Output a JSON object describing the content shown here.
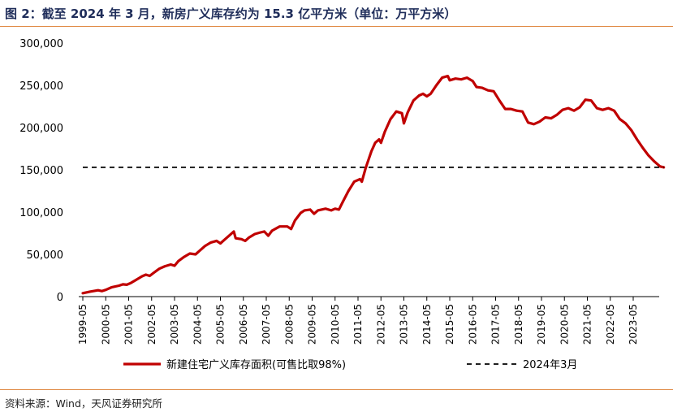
{
  "figure": {
    "title": "图 2：截至 2024 年 3 月，新房广义库存约为 15.3 亿平方米（单位：万平方米）",
    "source": "资料来源：Wind，天风证券研究所"
  },
  "chart_data": {
    "type": "line",
    "title": "",
    "xlabel": "",
    "ylabel": "",
    "ylim": [
      0,
      300000
    ],
    "yticks": [
      "0",
      "50,000",
      "100,000",
      "150,000",
      "200,000",
      "250,000",
      "300,000"
    ],
    "xticks": [
      "1999-05",
      "2000-05",
      "2001-05",
      "2002-05",
      "2003-05",
      "2004-05",
      "2005-05",
      "2006-05",
      "2007-05",
      "2008-05",
      "2009-05",
      "2010-05",
      "2011-05",
      "2012-05",
      "2013-05",
      "2014-05",
      "2015-05",
      "2016-05",
      "2017-05",
      "2018-05",
      "2019-05",
      "2020-05",
      "2021-05",
      "2022-05",
      "2023-05"
    ],
    "grid": false,
    "legend_position": "bottom",
    "series": [
      {
        "name": "新建住宅广义库存面积(可售比取98%)",
        "color": "#c00000",
        "style": "solid",
        "points": [
          [
            "1999-05",
            4000
          ],
          [
            "1999-09",
            6000
          ],
          [
            "2000-01",
            7500
          ],
          [
            "2000-03",
            6500
          ],
          [
            "2000-05",
            8000
          ],
          [
            "2000-08",
            11000
          ],
          [
            "2000-12",
            13000
          ],
          [
            "2001-02",
            14500
          ],
          [
            "2001-04",
            14000
          ],
          [
            "2001-06",
            16000
          ],
          [
            "2001-09",
            20000
          ],
          [
            "2001-12",
            24000
          ],
          [
            "2002-02",
            26000
          ],
          [
            "2002-04",
            24500
          ],
          [
            "2002-06",
            28000
          ],
          [
            "2002-09",
            33000
          ],
          [
            "2002-12",
            36000
          ],
          [
            "2003-03",
            38000
          ],
          [
            "2003-05",
            36500
          ],
          [
            "2003-07",
            42000
          ],
          [
            "2003-10",
            47000
          ],
          [
            "2004-01",
            51000
          ],
          [
            "2004-04",
            50000
          ],
          [
            "2004-06",
            54000
          ],
          [
            "2004-09",
            60000
          ],
          [
            "2004-12",
            64000
          ],
          [
            "2005-03",
            66000
          ],
          [
            "2005-05",
            63000
          ],
          [
            "2005-07",
            67000
          ],
          [
            "2005-10",
            73000
          ],
          [
            "2005-12",
            77000
          ],
          [
            "2006-01",
            69000
          ],
          [
            "2006-04",
            68000
          ],
          [
            "2006-06",
            66000
          ],
          [
            "2006-08",
            70000
          ],
          [
            "2006-11",
            74000
          ],
          [
            "2007-02",
            76000
          ],
          [
            "2007-04",
            77000
          ],
          [
            "2007-06",
            72000
          ],
          [
            "2007-08",
            78000
          ],
          [
            "2007-12",
            83000
          ],
          [
            "2008-04",
            83000
          ],
          [
            "2008-06",
            80000
          ],
          [
            "2008-08",
            90000
          ],
          [
            "2008-11",
            99000
          ],
          [
            "2009-01",
            102000
          ],
          [
            "2009-04",
            103000
          ],
          [
            "2009-06",
            98000
          ],
          [
            "2009-08",
            102000
          ],
          [
            "2009-12",
            104000
          ],
          [
            "2010-03",
            102000
          ],
          [
            "2010-05",
            104000
          ],
          [
            "2010-07",
            103000
          ],
          [
            "2010-09",
            112000
          ],
          [
            "2010-12",
            125000
          ],
          [
            "2011-03",
            136000
          ],
          [
            "2011-06",
            139000
          ],
          [
            "2011-07",
            136000
          ],
          [
            "2011-09",
            152000
          ],
          [
            "2011-12",
            172000
          ],
          [
            "2012-02",
            182000
          ],
          [
            "2012-04",
            186000
          ],
          [
            "2012-05",
            182000
          ],
          [
            "2012-07",
            195000
          ],
          [
            "2012-10",
            210000
          ],
          [
            "2013-01",
            219000
          ],
          [
            "2013-04",
            217000
          ],
          [
            "2013-05",
            205000
          ],
          [
            "2013-07",
            218000
          ],
          [
            "2013-10",
            232000
          ],
          [
            "2014-01",
            238000
          ],
          [
            "2014-03",
            240000
          ],
          [
            "2014-05",
            237000
          ],
          [
            "2014-07",
            240000
          ],
          [
            "2014-10",
            250000
          ],
          [
            "2015-01",
            259000
          ],
          [
            "2015-04",
            261000
          ],
          [
            "2015-05",
            256000
          ],
          [
            "2015-08",
            258000
          ],
          [
            "2015-11",
            257000
          ],
          [
            "2016-02",
            259000
          ],
          [
            "2016-05",
            255000
          ],
          [
            "2016-07",
            248000
          ],
          [
            "2016-10",
            247000
          ],
          [
            "2017-01",
            244000
          ],
          [
            "2017-04",
            243000
          ],
          [
            "2017-07",
            232000
          ],
          [
            "2017-10",
            222000
          ],
          [
            "2018-01",
            222000
          ],
          [
            "2018-04",
            220000
          ],
          [
            "2018-07",
            219000
          ],
          [
            "2018-10",
            206000
          ],
          [
            "2019-01",
            204000
          ],
          [
            "2019-04",
            207000
          ],
          [
            "2019-07",
            212000
          ],
          [
            "2019-10",
            211000
          ],
          [
            "2020-01",
            215000
          ],
          [
            "2020-04",
            221000
          ],
          [
            "2020-07",
            223000
          ],
          [
            "2020-10",
            220000
          ],
          [
            "2021-01",
            224000
          ],
          [
            "2021-04",
            233000
          ],
          [
            "2021-07",
            232000
          ],
          [
            "2021-10",
            223000
          ],
          [
            "2022-01",
            221000
          ],
          [
            "2022-04",
            223000
          ],
          [
            "2022-07",
            220000
          ],
          [
            "2022-10",
            210000
          ],
          [
            "2023-01",
            205000
          ],
          [
            "2023-04",
            197000
          ],
          [
            "2023-07",
            186000
          ],
          [
            "2023-10",
            176000
          ],
          [
            "2024-01",
            167000
          ],
          [
            "2024-04",
            160000
          ],
          [
            "2024-07",
            154000
          ],
          [
            "2024-09",
            153000
          ]
        ]
      },
      {
        "name": "2024年3月",
        "color": "#000000",
        "style": "dashed",
        "value": 153000,
        "points": [
          [
            "1999-05",
            153000
          ],
          [
            "2024-09",
            153000
          ]
        ]
      }
    ]
  }
}
